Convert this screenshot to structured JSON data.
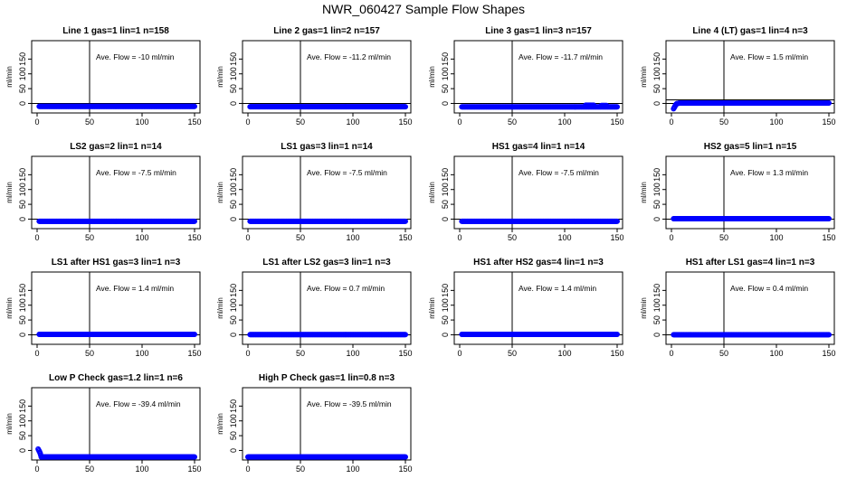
{
  "figure_title": "NWR_060427  Sample Flow Shapes",
  "colors": {
    "points": "#0000ff",
    "axes": "#000000",
    "background": "#ffffff"
  },
  "chart_data": [
    {
      "type": "scatter",
      "title": "Line 1 gas=1 lin=1 n=158",
      "ylabel": "ml/min",
      "annotation": "Ave. Flow =  -10  ml/min",
      "xlim": [
        0,
        150
      ],
      "ylim": [
        -20,
        200
      ],
      "xticks": [
        "0",
        "50",
        "100",
        "150"
      ],
      "yticks": [
        "0",
        "50",
        "100",
        "150"
      ],
      "vline_x": 50,
      "hline_y": [
        0
      ],
      "x": [
        2,
        150
      ],
      "y": [
        -10,
        -10
      ],
      "bumps": []
    },
    {
      "type": "scatter",
      "title": "Line 2 gas=1 lin=2 n=157",
      "ylabel": "ml/min",
      "annotation": "Ave. Flow = -11.2  ml/min",
      "xlim": [
        0,
        150
      ],
      "ylim": [
        -20,
        200
      ],
      "xticks": [
        "0",
        "50",
        "100",
        "150"
      ],
      "yticks": [
        "0",
        "50",
        "100",
        "150"
      ],
      "vline_x": 50,
      "hline_y": [
        0
      ],
      "x": [
        2,
        150
      ],
      "y": [
        -11.2,
        -11.2
      ],
      "bumps": []
    },
    {
      "type": "scatter",
      "title": "Line 3 gas=1 lin=3 n=157",
      "ylabel": "ml/min",
      "annotation": "Ave. Flow =  -11.7  ml/min",
      "xlim": [
        0,
        150
      ],
      "ylim": [
        -20,
        200
      ],
      "xticks": [
        "0",
        "50",
        "100",
        "150"
      ],
      "yticks": [
        "0",
        "50",
        "100",
        "150"
      ],
      "vline_x": 50,
      "hline_y": [
        0
      ],
      "x": [
        2,
        150
      ],
      "y": [
        -11.7,
        -11.7
      ],
      "bumps": [
        {
          "x": [
            120,
            128
          ],
          "y": -6
        },
        {
          "x": [
            135,
            140
          ],
          "y": -7
        }
      ]
    },
    {
      "type": "scatter",
      "title": "Line 4 (LT) gas=1 lin=4 n=3",
      "ylabel": "ml/min",
      "annotation": "Ave. Flow =  1.5  ml/min",
      "xlim": [
        0,
        150
      ],
      "ylim": [
        -20,
        200
      ],
      "xticks": [
        "0",
        "50",
        "100",
        "150"
      ],
      "yticks": [
        "0",
        "50",
        "100",
        "150"
      ],
      "vline_x": 50,
      "hline_y": [
        0,
        12
      ],
      "x": [
        2,
        3,
        4,
        5,
        6,
        8,
        150
      ],
      "y": [
        -18,
        -12,
        -5,
        -1,
        0,
        1.5,
        1.5
      ],
      "bumps": []
    },
    {
      "type": "scatter",
      "title": "LS2 gas=2 lin=1 n=14",
      "ylabel": "ml/min",
      "annotation": "Ave. Flow =  -7.5  ml/min",
      "xlim": [
        0,
        150
      ],
      "ylim": [
        -20,
        200
      ],
      "xticks": [
        "0",
        "50",
        "100",
        "150"
      ],
      "yticks": [
        "0",
        "50",
        "100",
        "150"
      ],
      "vline_x": 50,
      "hline_y": [
        0
      ],
      "x": [
        2,
        150
      ],
      "y": [
        -7.5,
        -7.5
      ],
      "bumps": []
    },
    {
      "type": "scatter",
      "title": "LS1 gas=3 lin=1 n=14",
      "ylabel": "ml/min",
      "annotation": "Ave. Flow =  -7.5  ml/min",
      "xlim": [
        0,
        150
      ],
      "ylim": [
        -20,
        200
      ],
      "xticks": [
        "0",
        "50",
        "100",
        "150"
      ],
      "yticks": [
        "0",
        "50",
        "100",
        "150"
      ],
      "vline_x": 50,
      "hline_y": [
        0
      ],
      "x": [
        2,
        150
      ],
      "y": [
        -7.5,
        -7.5
      ],
      "bumps": []
    },
    {
      "type": "scatter",
      "title": "HS1 gas=4 lin=1 n=14",
      "ylabel": "ml/min",
      "annotation": "Ave. Flow =  -7.5  ml/min",
      "xlim": [
        0,
        150
      ],
      "ylim": [
        -20,
        200
      ],
      "xticks": [
        "0",
        "50",
        "100",
        "150"
      ],
      "yticks": [
        "0",
        "50",
        "100",
        "150"
      ],
      "vline_x": 50,
      "hline_y": [
        0
      ],
      "x": [
        2,
        150
      ],
      "y": [
        -7.5,
        -7.5
      ],
      "bumps": []
    },
    {
      "type": "scatter",
      "title": "HS2 gas=5 lin=1 n=15",
      "ylabel": "ml/min",
      "annotation": "Ave. Flow =  1.3  ml/min",
      "xlim": [
        0,
        150
      ],
      "ylim": [
        -20,
        200
      ],
      "xticks": [
        "0",
        "50",
        "100",
        "150"
      ],
      "yticks": [
        "0",
        "50",
        "100",
        "150"
      ],
      "vline_x": 50,
      "hline_y": [
        0
      ],
      "x": [
        2,
        150
      ],
      "y": [
        1.3,
        1.3
      ],
      "bumps": []
    },
    {
      "type": "scatter",
      "title": "LS1 after HS1 gas=3 lin=1 n=3",
      "ylabel": "ml/min",
      "annotation": "Ave. Flow =  1.4  ml/min",
      "xlim": [
        0,
        150
      ],
      "ylim": [
        -20,
        200
      ],
      "xticks": [
        "0",
        "50",
        "100",
        "150"
      ],
      "yticks": [
        "0",
        "50",
        "100",
        "150"
      ],
      "vline_x": 50,
      "hline_y": [
        0
      ],
      "x": [
        2,
        150
      ],
      "y": [
        1.4,
        1.4
      ],
      "bumps": []
    },
    {
      "type": "scatter",
      "title": "LS1 after LS2 gas=3 lin=1 n=3",
      "ylabel": "ml/min",
      "annotation": "Ave. Flow =  0.7  ml/min",
      "xlim": [
        0,
        150
      ],
      "ylim": [
        -20,
        200
      ],
      "xticks": [
        "0",
        "50",
        "100",
        "150"
      ],
      "yticks": [
        "0",
        "50",
        "100",
        "150"
      ],
      "vline_x": 50,
      "hline_y": [
        0
      ],
      "x": [
        2,
        150
      ],
      "y": [
        0.7,
        0.7
      ],
      "bumps": []
    },
    {
      "type": "scatter",
      "title": "HS1 after HS2 gas=4 lin=1 n=3",
      "ylabel": "ml/min",
      "annotation": "Ave. Flow =  1.4  ml/min",
      "xlim": [
        0,
        150
      ],
      "ylim": [
        -20,
        200
      ],
      "xticks": [
        "0",
        "50",
        "100",
        "150"
      ],
      "yticks": [
        "0",
        "50",
        "100",
        "150"
      ],
      "vline_x": 50,
      "hline_y": [
        0
      ],
      "x": [
        2,
        150
      ],
      "y": [
        1.4,
        1.4
      ],
      "bumps": []
    },
    {
      "type": "scatter",
      "title": "HS1 after LS1 gas=4 lin=1 n=3",
      "ylabel": "ml/min",
      "annotation": "Ave. Flow =  0.4  ml/min",
      "xlim": [
        0,
        150
      ],
      "ylim": [
        -20,
        200
      ],
      "xticks": [
        "0",
        "50",
        "100",
        "150"
      ],
      "yticks": [
        "0",
        "50",
        "100",
        "150"
      ],
      "vline_x": 50,
      "hline_y": [
        0
      ],
      "x": [
        2,
        150
      ],
      "y": [
        0.4,
        0.4
      ],
      "bumps": []
    },
    {
      "type": "scatter",
      "title": "Low P Check gas=1.2 lin=1 n=6",
      "ylabel": "ml/min",
      "annotation": "Ave. Flow = -39.4  ml/min",
      "xlim": [
        0,
        150
      ],
      "ylim": [
        -20,
        200
      ],
      "xticks": [
        "0",
        "50",
        "100",
        "150"
      ],
      "yticks": [
        "0",
        "50",
        "100",
        "150"
      ],
      "vline_x": 50,
      "hline_y": [],
      "x": [
        1,
        2,
        3,
        4,
        150
      ],
      "y": [
        5,
        -2,
        -10,
        -22,
        -22
      ],
      "bumps": []
    },
    {
      "type": "scatter",
      "title": "High P Check gas=1 lin=0.8 n=3",
      "ylabel": "ml/min",
      "annotation": "Ave. Flow = -39.5  ml/min",
      "xlim": [
        0,
        150
      ],
      "ylim": [
        -20,
        200
      ],
      "xticks": [
        "0",
        "50",
        "100",
        "150"
      ],
      "yticks": [
        "0",
        "50",
        "100",
        "150"
      ],
      "vline_x": 50,
      "hline_y": [],
      "x": [
        0,
        150
      ],
      "y": [
        -22,
        -22
      ],
      "bumps": []
    }
  ]
}
